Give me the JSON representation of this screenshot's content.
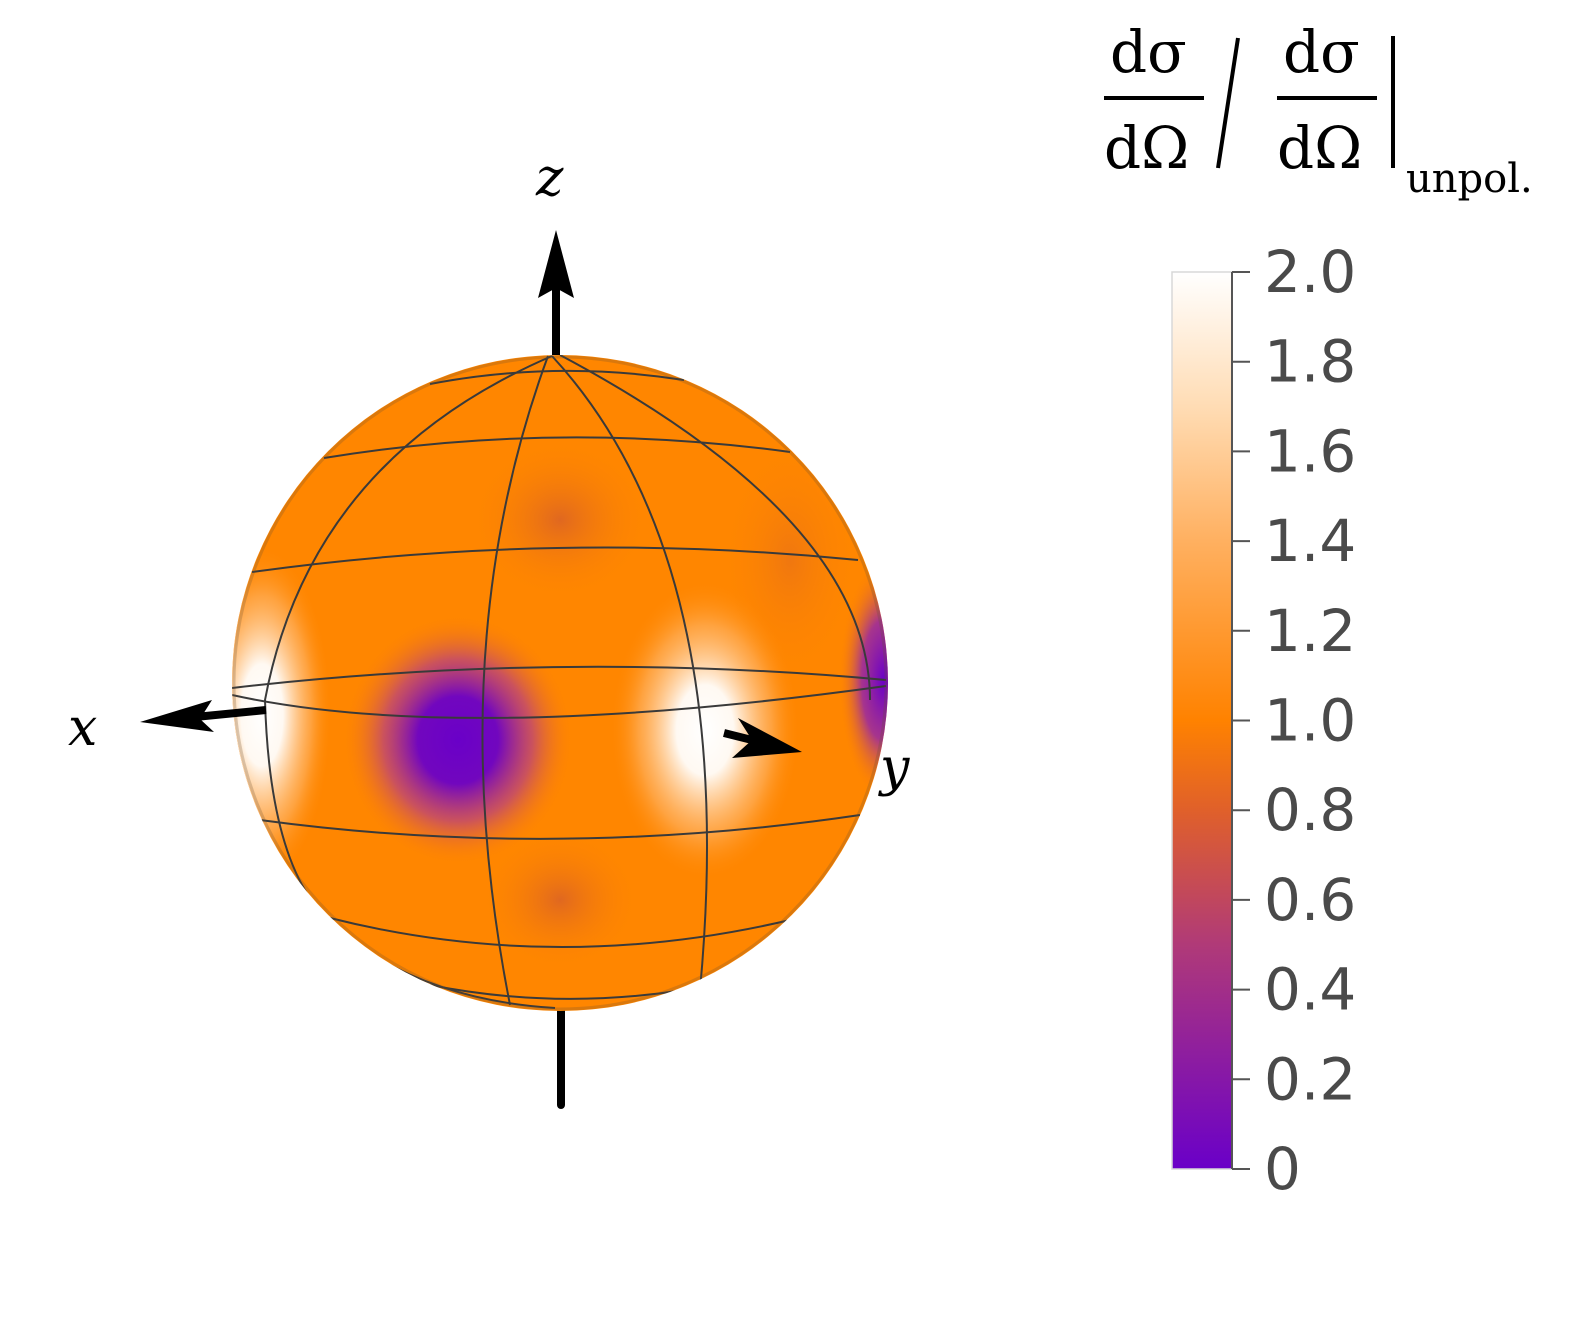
{
  "axes": {
    "x_label": "x",
    "y_label": "y",
    "z_label": "z"
  },
  "colorbar": {
    "title": {
      "numerator": "dσ",
      "denominator": "dΩ",
      "subscript": "unpol."
    },
    "min": 0,
    "max": 2.0,
    "ticks": [
      "0",
      "0.2",
      "0.4",
      "0.6",
      "0.8",
      "1.0",
      "1.2",
      "1.4",
      "1.6",
      "1.8",
      "2.0"
    ],
    "colors": [
      "#6a00c8",
      "#cc5040",
      "#ff8200",
      "#ffffff"
    ]
  },
  "sphere": {
    "base_color": "#ff8600",
    "min_color": "#6a00c8",
    "max_color": "#ffffff"
  }
}
